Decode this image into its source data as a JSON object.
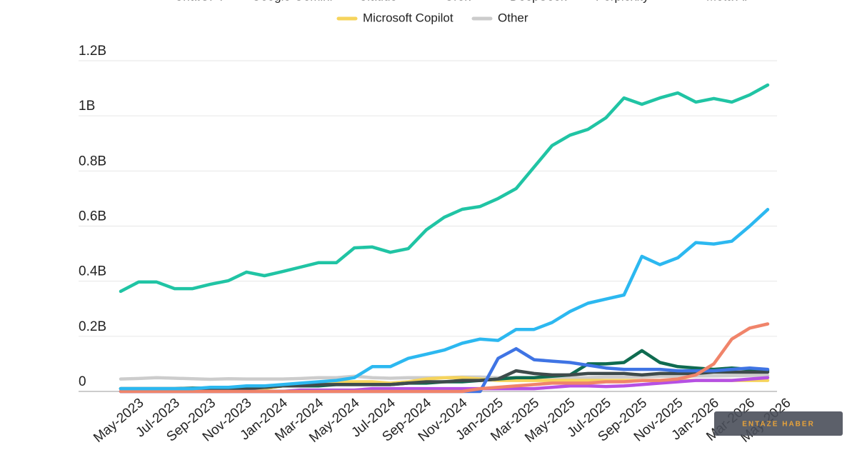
{
  "chart_data": {
    "type": "line",
    "categories": [
      "May-2023",
      null,
      "Jul-2023",
      null,
      "Sep-2023",
      null,
      "Nov-2023",
      null,
      "Jan-2024",
      null,
      "Mar-2024",
      null,
      "May-2024",
      null,
      "Jul-2024",
      null,
      "Sep-2024",
      null,
      "Nov-2024",
      null,
      "Jan-2025",
      null,
      "Mar-2025",
      null,
      "May-2025",
      null,
      "Jul-2025",
      null,
      "Sep-2025",
      null,
      "Nov-2025",
      null,
      "Jan-2026",
      null,
      "Mar-2026",
      null,
      "May-2026"
    ],
    "ylim": [
      0,
      1.2
    ],
    "yticks": [
      {
        "value": 0,
        "label": "0"
      },
      {
        "value": 0.2,
        "label": "0.2B"
      },
      {
        "value": 0.4,
        "label": "0.4B"
      },
      {
        "value": 0.6,
        "label": "0.6B"
      },
      {
        "value": 0.8,
        "label": "0.8B"
      },
      {
        "value": 1,
        "label": "1B"
      },
      {
        "value": 1.2,
        "label": "1.2B"
      }
    ],
    "grid": true,
    "series": [
      {
        "name": "ChatGPT",
        "color": "#20c4a4",
        "values": [
          0.363,
          0.397,
          0.397,
          0.373,
          0.373,
          0.389,
          0.402,
          0.433,
          0.42,
          0.435,
          0.451,
          0.467,
          0.467,
          0.521,
          0.524,
          0.505,
          0.518,
          0.586,
          0.632,
          0.661,
          0.671,
          0.7,
          0.736,
          0.814,
          0.892,
          0.93,
          0.951,
          0.993,
          1.065,
          1.042,
          1.065,
          1.083,
          1.05,
          1.063,
          1.05,
          1.076,
          1.112
        ]
      },
      {
        "name": "Google Gemini",
        "color": "#2cb8f0",
        "values": [
          0.01,
          0.01,
          0.01,
          0.01,
          0.01,
          0.015,
          0.015,
          0.02,
          0.02,
          0.025,
          0.03,
          0.035,
          0.04,
          0.05,
          0.09,
          0.09,
          0.12,
          0.135,
          0.15,
          0.175,
          0.19,
          0.185,
          0.225,
          0.225,
          0.25,
          0.29,
          0.32,
          0.335,
          0.35,
          0.49,
          0.46,
          0.485,
          0.54,
          0.535,
          0.545,
          0.6,
          0.66
        ]
      },
      {
        "name": "Claude",
        "color": "#f0846a",
        "values": [
          0,
          0,
          0,
          0,
          0,
          0,
          0,
          0,
          0,
          0,
          0,
          0,
          0,
          0,
          0,
          0,
          0,
          0,
          0,
          0,
          0.01,
          0.015,
          0.02,
          0.025,
          0.03,
          0.03,
          0.03,
          0.035,
          0.035,
          0.04,
          0.04,
          0.045,
          0.06,
          0.1,
          0.19,
          0.23,
          0.245
        ]
      },
      {
        "name": "Grok",
        "color": "#3f74e4",
        "values": [
          0,
          0,
          0,
          0,
          0,
          0,
          0,
          0,
          0,
          0,
          0,
          0,
          0,
          0,
          0,
          0,
          0,
          0,
          0,
          0,
          0,
          0.12,
          0.155,
          0.115,
          0.11,
          0.105,
          0.095,
          0.085,
          0.08,
          0.08,
          0.08,
          0.075,
          0.075,
          0.075,
          0.08,
          0.085,
          0.08
        ]
      },
      {
        "name": "DeepSeek",
        "color": "#3e4b4b",
        "values": [
          0.01,
          0.01,
          0.01,
          0.01,
          0.01,
          0.01,
          0.01,
          0.01,
          0.015,
          0.02,
          0.02,
          0.025,
          0.025,
          0.025,
          0.025,
          0.025,
          0.03,
          0.035,
          0.035,
          0.04,
          0.04,
          0.045,
          0.075,
          0.065,
          0.06,
          0.06,
          0.065,
          0.065,
          0.065,
          0.06,
          0.065,
          0.065,
          0.065,
          0.07,
          0.07,
          0.07,
          0.07
        ]
      },
      {
        "name": "Perplexity",
        "color": "#0f6b50",
        "values": [
          0.01,
          0.01,
          0.01,
          0.01,
          0.012,
          0.012,
          0.015,
          0.015,
          0.015,
          0.02,
          0.02,
          0.02,
          0.025,
          0.025,
          0.025,
          0.025,
          0.03,
          0.03,
          0.035,
          0.035,
          0.04,
          0.045,
          0.05,
          0.05,
          0.055,
          0.06,
          0.1,
          0.1,
          0.105,
          0.148,
          0.105,
          0.09,
          0.085,
          0.08,
          0.085,
          0.08,
          0.075
        ]
      },
      {
        "name": "Meta AI",
        "color": "#b650e4",
        "values": [
          0,
          0,
          0,
          0,
          0,
          0,
          0,
          0,
          0,
          0,
          0.005,
          0.005,
          0.005,
          0.005,
          0.01,
          0.01,
          0.01,
          0.01,
          0.01,
          0.01,
          0.01,
          0.01,
          0.01,
          0.01,
          0.015,
          0.02,
          0.02,
          0.018,
          0.02,
          0.025,
          0.03,
          0.035,
          0.04,
          0.04,
          0.04,
          0.045,
          0.05
        ]
      },
      {
        "name": "Microsoft Copilot",
        "color": "#f6d45c",
        "values": [
          0,
          0,
          0,
          0,
          0,
          0,
          0,
          0.005,
          0.01,
          0.02,
          0.025,
          0.03,
          0.035,
          0.035,
          0.035,
          0.03,
          0.035,
          0.045,
          0.05,
          0.05,
          0.045,
          0.04,
          0.04,
          0.04,
          0.04,
          0.04,
          0.04,
          0.04,
          0.04,
          0.04,
          0.04,
          0.04,
          0.04,
          0.04,
          0.04,
          0.04,
          0.04
        ]
      },
      {
        "name": "Other",
        "color": "#cccccc",
        "values": [
          0.045,
          0.047,
          0.05,
          0.048,
          0.046,
          0.044,
          0.046,
          0.045,
          0.045,
          0.045,
          0.047,
          0.05,
          0.05,
          0.055,
          0.05,
          0.048,
          0.05,
          0.05,
          0.05,
          0.052,
          0.052,
          0.05,
          0.05,
          0.05,
          0.05,
          0.05,
          0.05,
          0.052,
          0.052,
          0.053,
          0.055,
          0.055,
          0.056,
          0.056,
          0.057,
          0.058,
          0.058
        ]
      }
    ],
    "watermark": "ENTAZE HABER"
  }
}
